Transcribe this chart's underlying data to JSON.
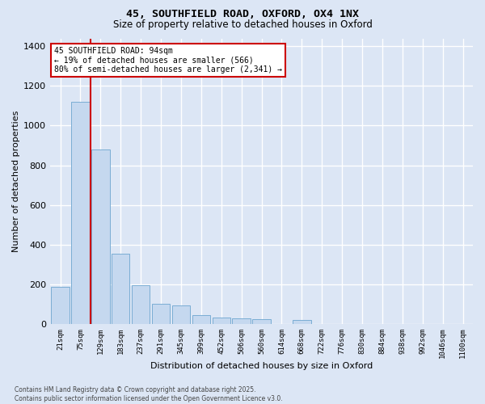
{
  "title_line1": "45, SOUTHFIELD ROAD, OXFORD, OX4 1NX",
  "title_line2": "Size of property relative to detached houses in Oxford",
  "xlabel": "Distribution of detached houses by size in Oxford",
  "ylabel": "Number of detached properties",
  "bar_color": "#c5d8ef",
  "bar_edge_color": "#7aadd4",
  "background_color": "#dce6f5",
  "grid_color": "#ffffff",
  "categories": [
    "21sqm",
    "75sqm",
    "129sqm",
    "183sqm",
    "237sqm",
    "291sqm",
    "345sqm",
    "399sqm",
    "452sqm",
    "506sqm",
    "560sqm",
    "614sqm",
    "668sqm",
    "722sqm",
    "776sqm",
    "830sqm",
    "884sqm",
    "938sqm",
    "992sqm",
    "1046sqm",
    "1100sqm"
  ],
  "values": [
    185,
    1120,
    880,
    355,
    195,
    100,
    95,
    45,
    30,
    28,
    25,
    0,
    18,
    0,
    0,
    0,
    0,
    0,
    0,
    0,
    0
  ],
  "ylim": [
    0,
    1440
  ],
  "yticks": [
    0,
    200,
    400,
    600,
    800,
    1000,
    1200,
    1400
  ],
  "annotation_line1": "45 SOUTHFIELD ROAD: 94sqm",
  "annotation_line2": "← 19% of detached houses are smaller (566)",
  "annotation_line3": "80% of semi-detached houses are larger (2,341) →",
  "vline_x": 1.5,
  "vline_color": "#cc0000",
  "footer_line1": "Contains HM Land Registry data © Crown copyright and database right 2025.",
  "footer_line2": "Contains public sector information licensed under the Open Government Licence v3.0."
}
